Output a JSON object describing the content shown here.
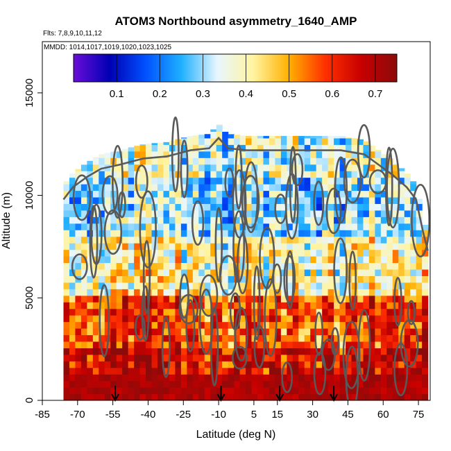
{
  "chart_data": {
    "type": "heatmap",
    "title": "ATOM3 Northbound asymmetry_1640_AMP",
    "flights_note": "Flts: 7,8,9,10,11,12",
    "dates_note": "MMDD: 1014,1017,1019,1020,1023,1025",
    "xlabel": "Latitude (deg N)",
    "ylabel": "Altitude (m)",
    "xlim": [
      -85,
      80
    ],
    "ylim": [
      0,
      17500
    ],
    "x_ticks": [
      -85,
      -70,
      -55,
      -40,
      -25,
      -10,
      5,
      15,
      30,
      45,
      60,
      75
    ],
    "y_ticks": [
      0,
      5000,
      10000,
      15000
    ],
    "colorbar": {
      "range": [
        0.0,
        0.75
      ],
      "ticks": [
        0.1,
        0.2,
        0.3,
        0.4,
        0.5,
        0.6,
        0.7
      ],
      "colors": [
        "#6a0dd8",
        "#0000b4",
        "#0050ff",
        "#1fb0ff",
        "#e8f6ff",
        "#fff4a0",
        "#ffb000",
        "#ff3000",
        "#c80000",
        "#8b0a0a"
      ]
    },
    "profile_top_altitude": [
      {
        "lat": -76,
        "alt": 10500
      },
      {
        "lat": -72,
        "alt": 11100
      },
      {
        "lat": -66,
        "alt": 11600
      },
      {
        "lat": -60,
        "alt": 12000
      },
      {
        "lat": -52,
        "alt": 12200
      },
      {
        "lat": -42,
        "alt": 12500
      },
      {
        "lat": -32,
        "alt": 12600
      },
      {
        "lat": -22,
        "alt": 12900
      },
      {
        "lat": -14,
        "alt": 13000
      },
      {
        "lat": -10,
        "alt": 13500
      },
      {
        "lat": -6,
        "alt": 13000
      },
      {
        "lat": 2,
        "alt": 12900
      },
      {
        "lat": 12,
        "alt": 12900
      },
      {
        "lat": 22,
        "alt": 12900
      },
      {
        "lat": 32,
        "alt": 12900
      },
      {
        "lat": 42,
        "alt": 12900
      },
      {
        "lat": 52,
        "alt": 12700
      },
      {
        "lat": 58,
        "alt": 12200
      },
      {
        "lat": 64,
        "alt": 11700
      },
      {
        "lat": 70,
        "alt": 11100
      },
      {
        "lat": 74,
        "alt": 10500
      },
      {
        "lat": 77,
        "alt": 8900
      },
      {
        "lat": 79,
        "alt": 8000
      }
    ],
    "profile_x_range": [
      -76,
      79
    ],
    "asymmetry_by_altitude_band": [
      {
        "alt_range": [
          0,
          1000
        ],
        "mean_value": 0.72
      },
      {
        "alt_range": [
          1000,
          2500
        ],
        "mean_value": 0.66
      },
      {
        "alt_range": [
          2500,
          5000
        ],
        "mean_value": 0.58
      },
      {
        "alt_range": [
          5000,
          8000
        ],
        "mean_value": 0.4
      },
      {
        "alt_range": [
          8000,
          11000
        ],
        "mean_value": 0.3
      },
      {
        "alt_range": [
          11000,
          13500
        ],
        "mean_value": 0.35
      }
    ],
    "arrow_latitudes": [
      -54,
      -9,
      16,
      39
    ]
  }
}
